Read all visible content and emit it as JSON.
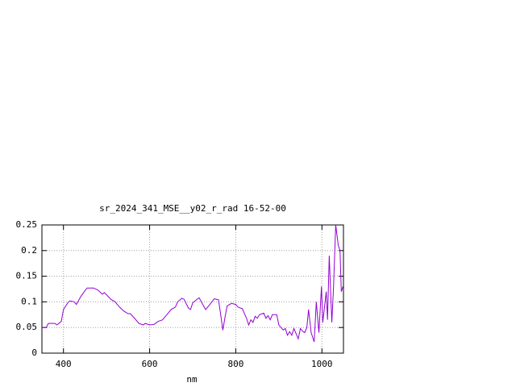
{
  "chart_data": {
    "type": "line",
    "title": "sr_2024_341_MSE__y02_r_rad 16-52-00",
    "xlabel": "nm",
    "color": "#9400d3",
    "grid": true,
    "xlim": [
      350,
      1050
    ],
    "xticks": [
      400,
      600,
      800,
      1000
    ],
    "ylim": [
      0,
      0.25
    ],
    "yticks": [
      0,
      0.05,
      0.1,
      0.15,
      0.2,
      0.25
    ],
    "x": [
      350,
      360,
      365,
      380,
      385,
      395,
      400,
      410,
      415,
      425,
      430,
      440,
      450,
      455,
      470,
      480,
      490,
      495,
      510,
      520,
      530,
      540,
      550,
      555,
      565,
      575,
      585,
      590,
      600,
      610,
      620,
      630,
      640,
      650,
      660,
      665,
      675,
      680,
      690,
      695,
      700,
      710,
      715,
      720,
      730,
      740,
      750,
      760,
      765,
      770,
      775,
      780,
      790,
      800,
      805,
      810,
      815,
      825,
      830,
      835,
      840,
      845,
      850,
      855,
      865,
      870,
      875,
      880,
      885,
      895,
      900,
      905,
      910,
      915,
      920,
      925,
      930,
      935,
      940,
      945,
      950,
      955,
      960,
      965,
      969,
      975,
      982,
      987,
      993,
      999,
      1002,
      1010,
      1013,
      1017,
      1023,
      1027,
      1032,
      1038,
      1042,
      1045,
      1049
    ],
    "values": [
      0.05,
      0.05,
      0.058,
      0.058,
      0.055,
      0.062,
      0.085,
      0.098,
      0.102,
      0.1,
      0.095,
      0.11,
      0.122,
      0.127,
      0.127,
      0.123,
      0.115,
      0.118,
      0.105,
      0.1,
      0.09,
      0.082,
      0.077,
      0.077,
      0.068,
      0.058,
      0.055,
      0.058,
      0.055,
      0.056,
      0.062,
      0.065,
      0.075,
      0.085,
      0.09,
      0.1,
      0.107,
      0.105,
      0.088,
      0.085,
      0.098,
      0.105,
      0.108,
      0.1,
      0.085,
      0.095,
      0.106,
      0.104,
      0.075,
      0.045,
      0.07,
      0.092,
      0.097,
      0.095,
      0.09,
      0.088,
      0.087,
      0.068,
      0.055,
      0.065,
      0.06,
      0.072,
      0.068,
      0.075,
      0.078,
      0.068,
      0.073,
      0.065,
      0.075,
      0.075,
      0.055,
      0.05,
      0.045,
      0.048,
      0.035,
      0.042,
      0.035,
      0.048,
      0.038,
      0.028,
      0.048,
      0.043,
      0.04,
      0.05,
      0.085,
      0.04,
      0.022,
      0.1,
      0.04,
      0.13,
      0.06,
      0.12,
      0.065,
      0.19,
      0.06,
      0.13,
      0.25,
      0.21,
      0.2,
      0.12,
      0.13
    ]
  }
}
